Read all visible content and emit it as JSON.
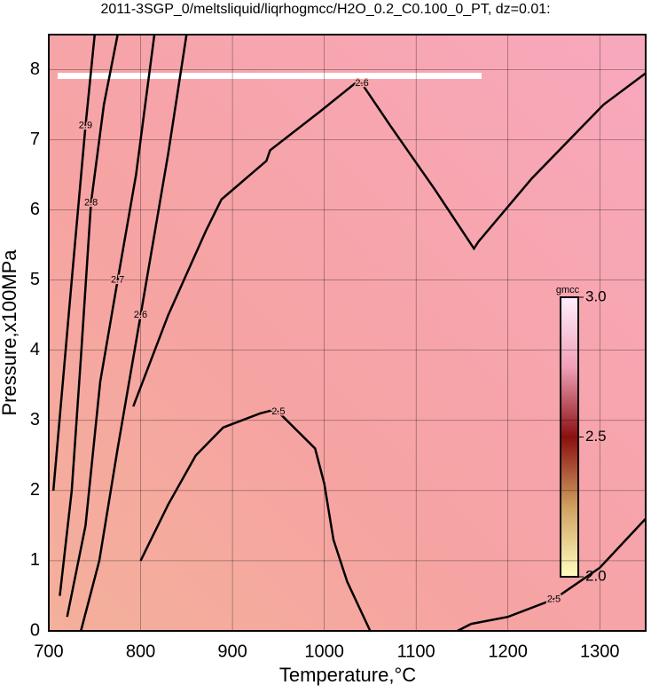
{
  "chart_data": {
    "type": "contour",
    "title": "2011-3SGP_0/meltsliquid/liqrhogmcc/H2O_0.2_C0.100_0_PT, dz=0.01:",
    "xlabel": "Temperature,°C",
    "ylabel": "Pressure,x100MPa",
    "xlim": [
      700,
      1350
    ],
    "ylim": [
      0,
      8.5
    ],
    "xticks": [
      700,
      800,
      900,
      1000,
      1100,
      1200,
      1300
    ],
    "yticks": [
      0,
      1,
      2,
      3,
      4,
      5,
      6,
      7,
      8
    ],
    "grid": true,
    "line_color": "#000000",
    "contours": [
      {
        "level": 2.5,
        "x": [
          800,
          830,
          860,
          890,
          930,
          945,
          950,
          990,
          1000,
          1010,
          1025,
          1050
        ],
        "y": [
          1.0,
          1.8,
          2.5,
          2.9,
          3.1,
          3.15,
          3.12,
          2.6,
          2.1,
          1.3,
          0.7,
          0
        ]
      },
      {
        "level": 2.5,
        "x": [
          1145,
          1160,
          1200,
          1250,
          1300,
          1350
        ],
        "y": [
          0,
          0.1,
          0.2,
          0.45,
          0.9,
          1.6
        ]
      },
      {
        "level": 2.6,
        "x": [
          735,
          755,
          775,
          800,
          830,
          850
        ],
        "y": [
          0,
          1,
          2.6,
          4.5,
          6.8,
          8.5
        ]
      },
      {
        "level": 2.6,
        "x": [
          792,
          830,
          871,
          888,
          937,
          941,
          995,
          1033,
          1041,
          1072,
          1120,
          1163,
          1168,
          1226,
          1304,
          1350
        ],
        "y": [
          3.2,
          4.5,
          5.7,
          6.15,
          6.7,
          6.85,
          7.4,
          7.8,
          7.8,
          7.2,
          6.3,
          5.45,
          5.55,
          6.45,
          7.5,
          7.95
        ]
      },
      {
        "level": 2.7,
        "x": [
          720,
          740,
          756,
          775,
          795,
          815
        ],
        "y": [
          0.2,
          1.5,
          3.55,
          5,
          6.5,
          8.5
        ]
      },
      {
        "level": 2.8,
        "x": [
          712,
          725,
          735,
          746,
          760,
          775
        ],
        "y": [
          0.5,
          2,
          3.9,
          6.1,
          7.5,
          8.5
        ]
      },
      {
        "level": 2.9,
        "x": [
          705,
          725,
          740,
          750
        ],
        "y": [
          2,
          5,
          7.2,
          8.5
        ]
      }
    ],
    "colorbar": {
      "title": "gmcc",
      "lim": [
        2,
        3
      ],
      "ticks": [
        {
          "value": 2,
          "label": "2.0"
        },
        2.5,
        {
          "value": 3,
          "label": "3.0"
        }
      ]
    }
  }
}
